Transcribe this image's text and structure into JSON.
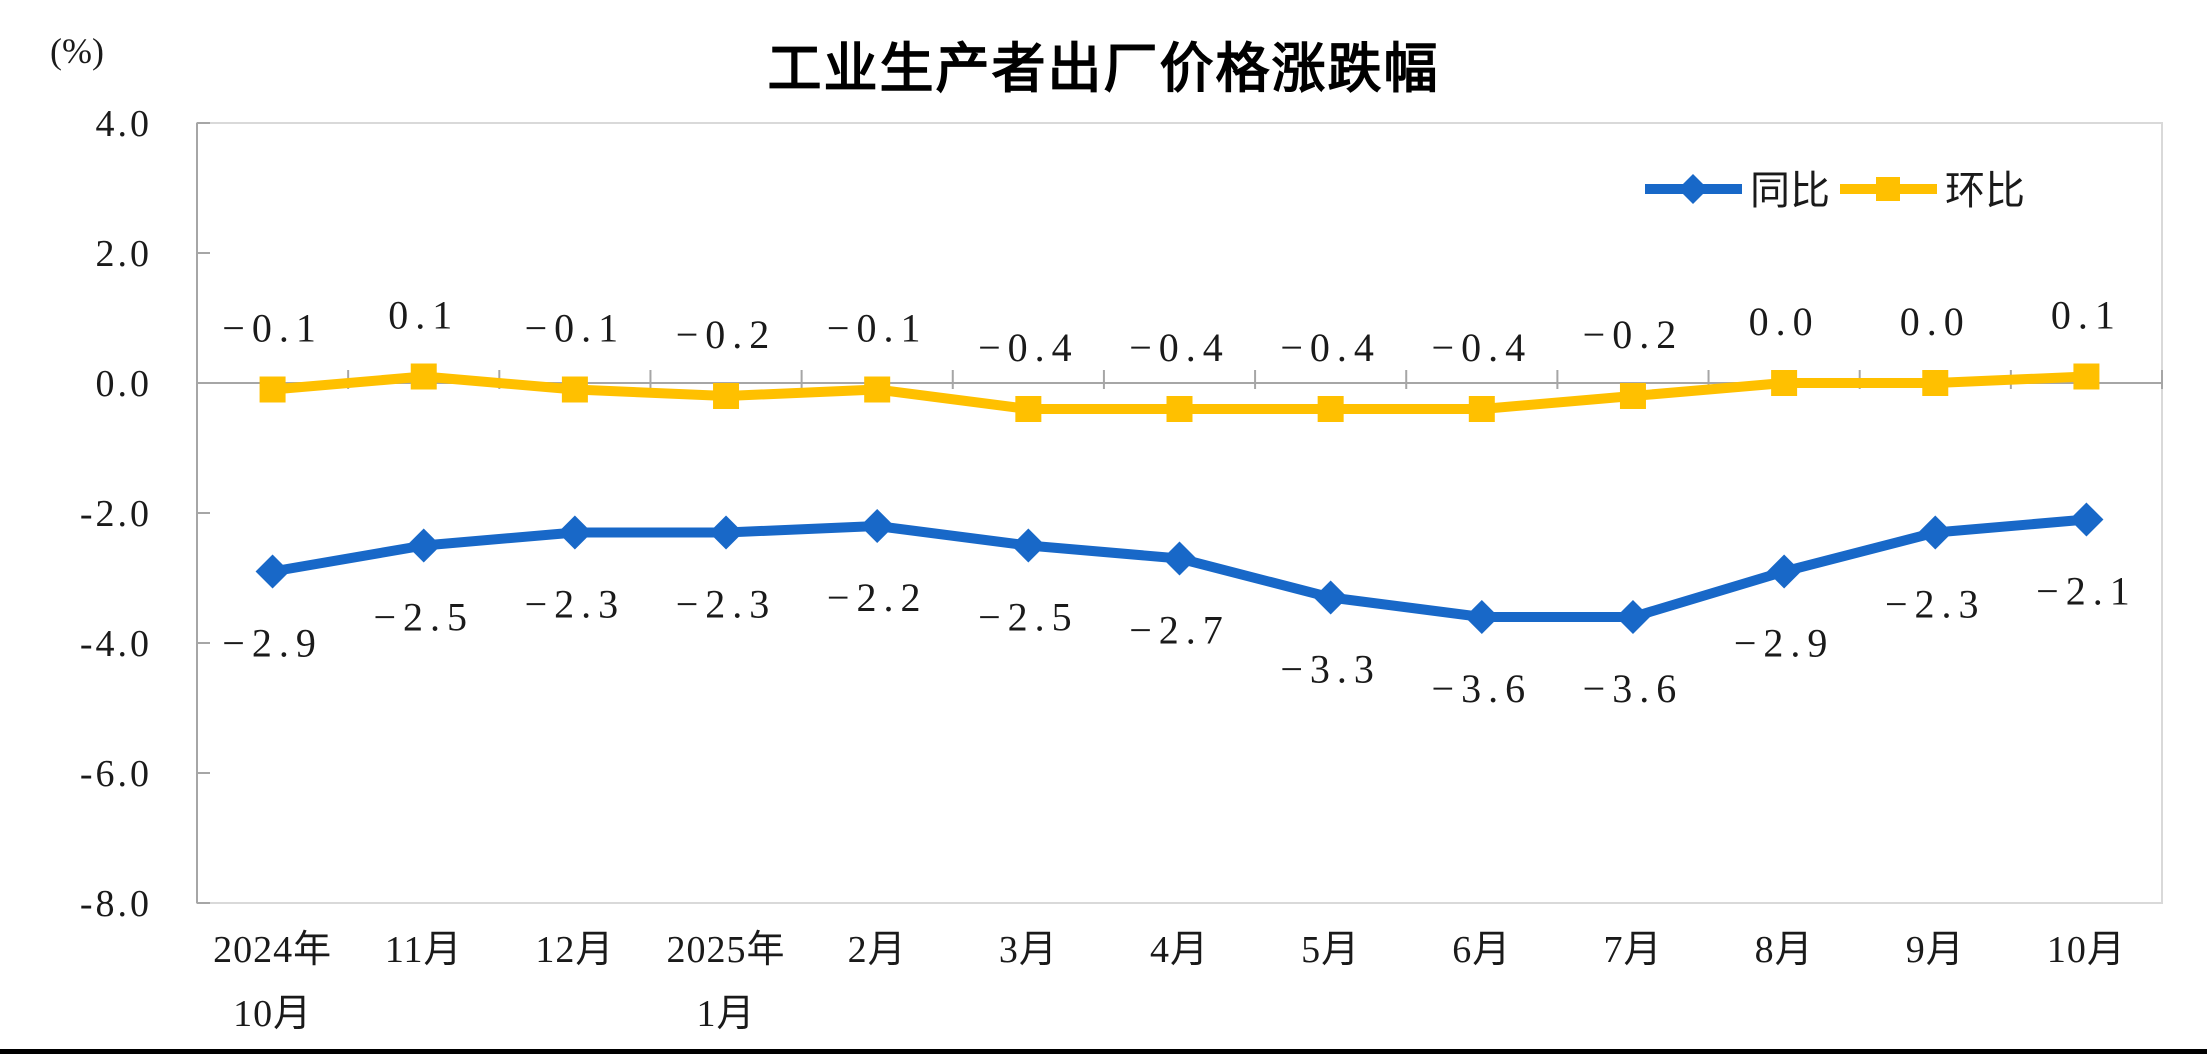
{
  "header": {
    "title": "工业生产者出厂价格涨跌幅",
    "unit_label": "(%)"
  },
  "chart_data": {
    "type": "line",
    "title": "工业生产者出厂价格涨跌幅",
    "unit_label": "(%)",
    "categories": [
      [
        "2024年",
        "10月"
      ],
      [
        "11月"
      ],
      [
        "12月"
      ],
      [
        "2025年",
        "1月"
      ],
      [
        "2月"
      ],
      [
        "3月"
      ],
      [
        "4月"
      ],
      [
        "5月"
      ],
      [
        "6月"
      ],
      [
        "7月"
      ],
      [
        "8月"
      ],
      [
        "9月"
      ],
      [
        "10月"
      ]
    ],
    "y_axis": {
      "min": -8,
      "max": 4,
      "tick_step": 2,
      "ticks": [
        "4.0",
        "2.0",
        "0.0",
        "-2.0",
        "-4.0",
        "-6.0",
        "-8.0"
      ]
    },
    "series": [
      {
        "name": "同比",
        "marker": "diamond",
        "color": "#1868C8",
        "label_position": "below",
        "values": [
          -2.9,
          -2.5,
          -2.3,
          -2.3,
          -2.2,
          -2.5,
          -2.7,
          -3.3,
          -3.6,
          -3.6,
          -2.9,
          -2.3,
          -2.1
        ],
        "labels": [
          "−2.9",
          "−2.5",
          "−2.3",
          "−2.3",
          "−2.2",
          "−2.5",
          "−2.7",
          "−3.3",
          "−3.6",
          "−3.6",
          "−2.9",
          "−2.3",
          "−2.1"
        ]
      },
      {
        "name": "环比",
        "marker": "square",
        "color": "#FFC000",
        "label_position": "above",
        "values": [
          -0.1,
          0.1,
          -0.1,
          -0.2,
          -0.1,
          -0.4,
          -0.4,
          -0.4,
          -0.4,
          -0.2,
          0.0,
          0.0,
          0.1
        ],
        "labels": [
          "−0.1",
          "0.1",
          "−0.1",
          "−0.2",
          "−0.1",
          "−0.4",
          "−0.4",
          "−0.4",
          "−0.4",
          "−0.2",
          "0.0",
          "0.0",
          "0.1"
        ]
      }
    ],
    "legend": {
      "position": "top-right",
      "entries": [
        "同比",
        "环比"
      ]
    },
    "gridlines": "zero-line-only"
  }
}
